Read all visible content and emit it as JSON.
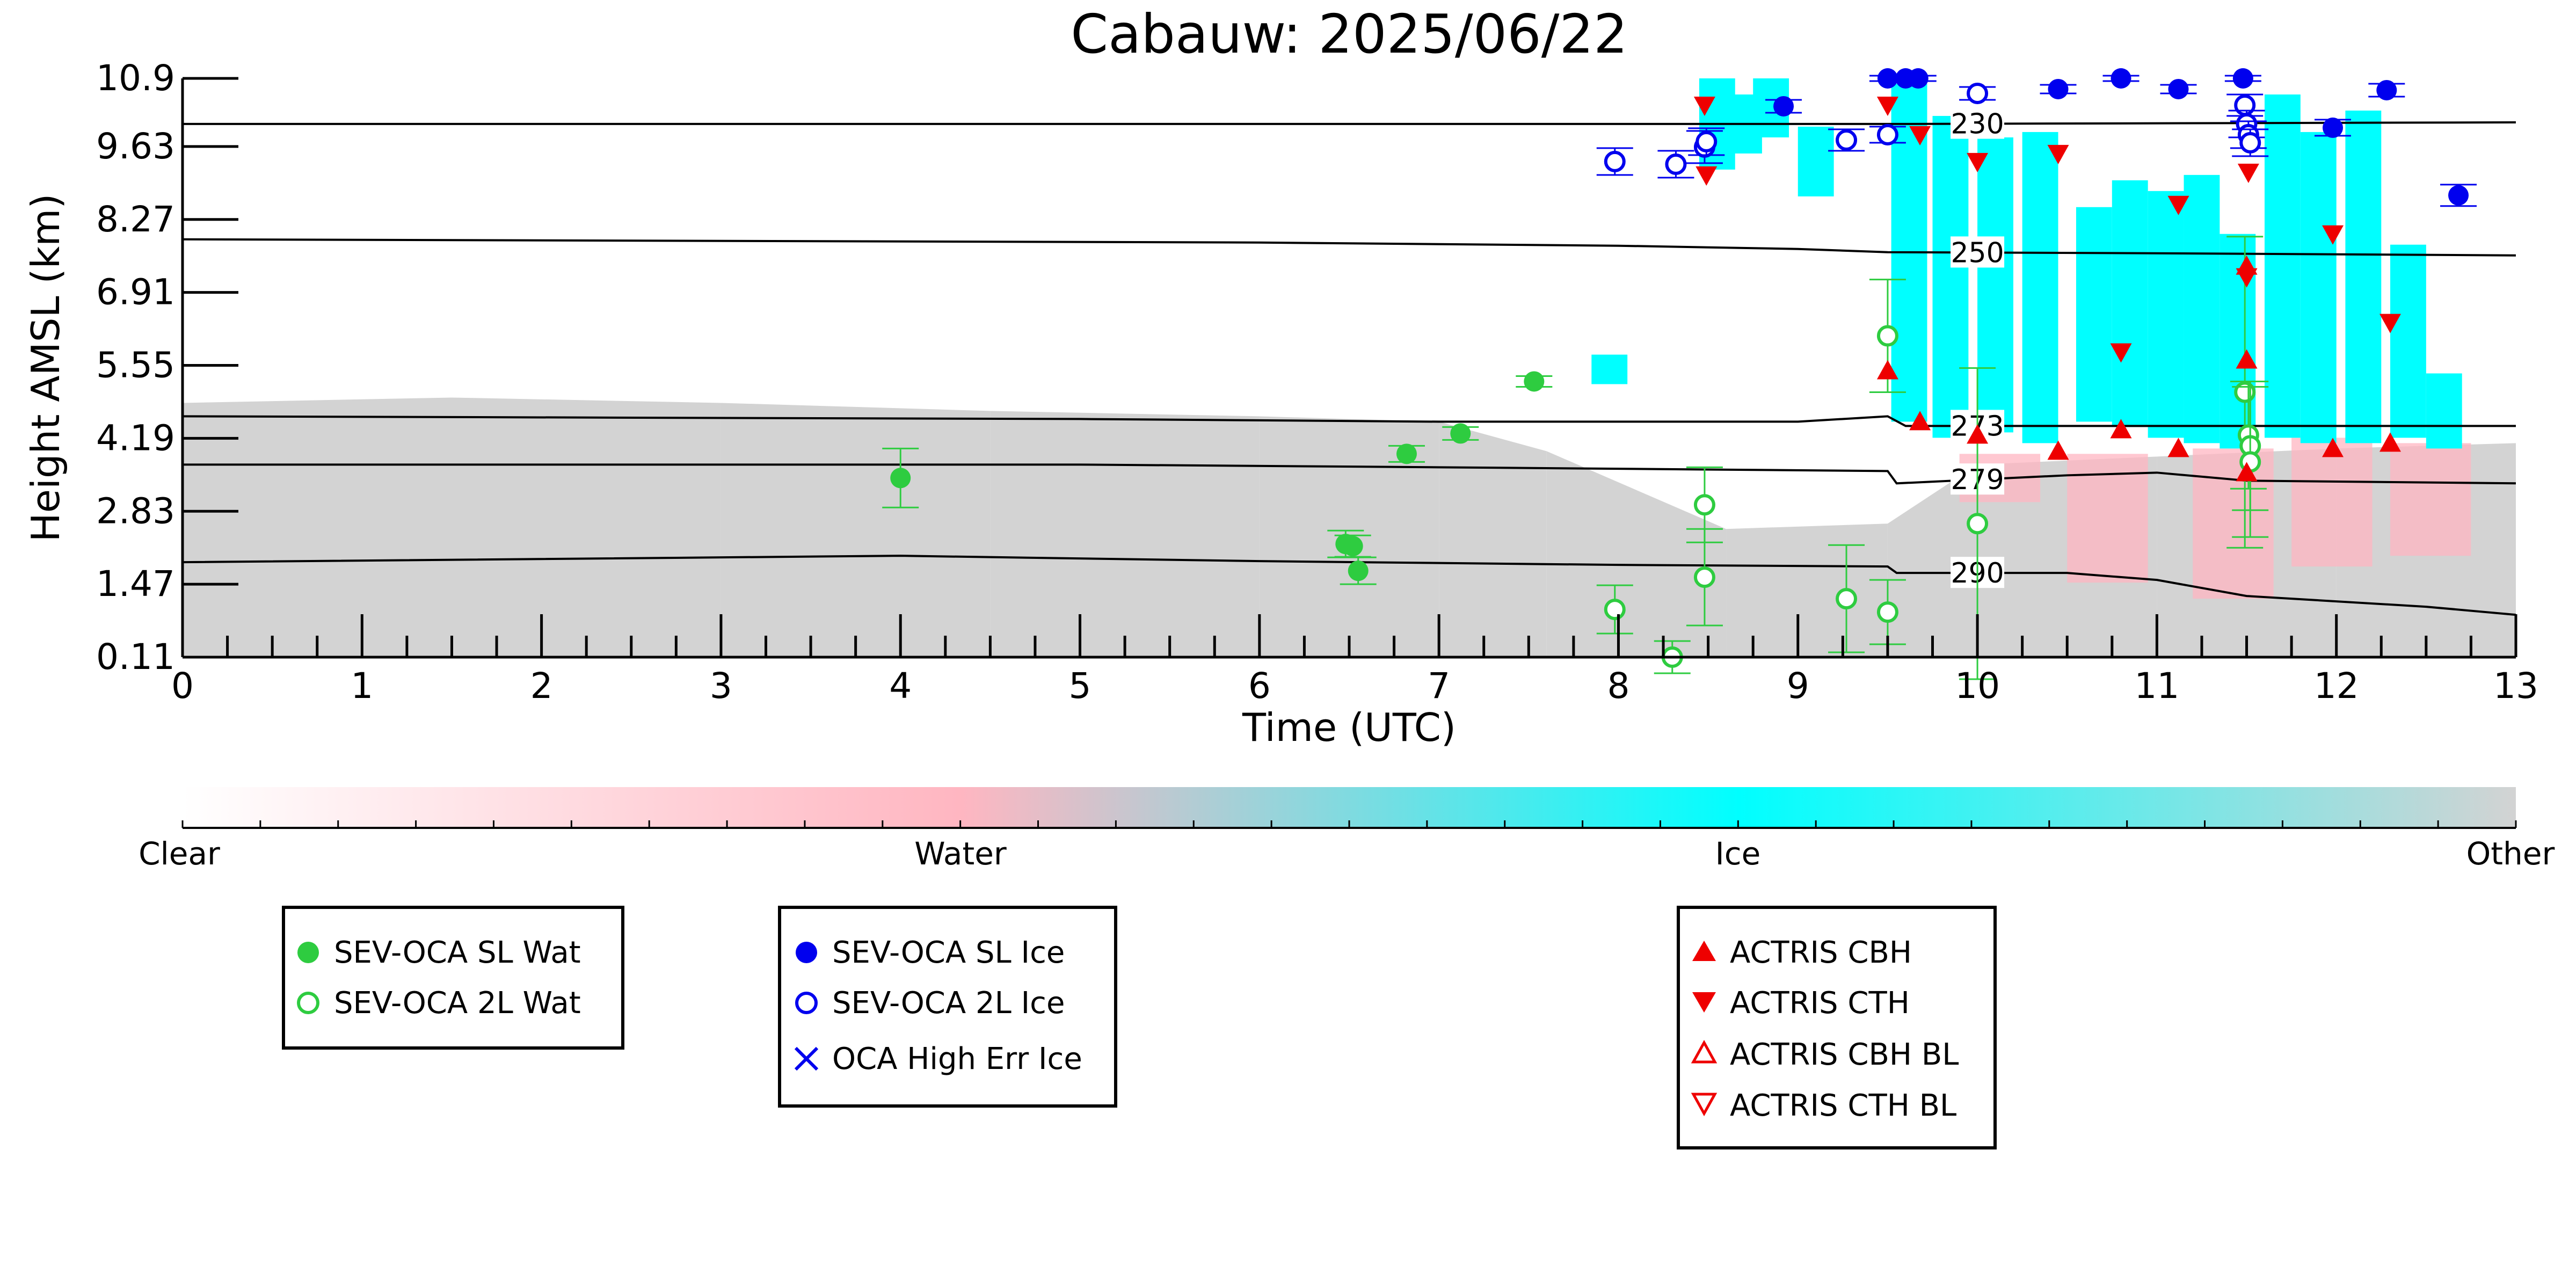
{
  "chart_data": {
    "type": "scatter",
    "title": "Cabauw: 2025/06/22",
    "xlabel": "Time (UTC)",
    "ylabel": "Height AMSL (km)",
    "xlim": [
      0,
      13
    ],
    "ylim": [
      0.11,
      10.9
    ],
    "xticks": [
      "0",
      "1",
      "2",
      "3",
      "4",
      "5",
      "6",
      "7",
      "8",
      "9",
      "10",
      "11",
      "12",
      "13"
    ],
    "yticks": [
      "0.11",
      "1.47",
      "2.83",
      "4.19",
      "5.55",
      "6.91",
      "8.27",
      "9.63",
      "10.9"
    ],
    "ytick_values": [
      0.11,
      1.47,
      2.83,
      4.19,
      5.55,
      6.91,
      8.27,
      9.63,
      10.9
    ],
    "colorbar": {
      "labels": [
        "Clear",
        "Water",
        "Ice",
        "Other"
      ],
      "colors": [
        "#ffffff",
        "#ffb6c1",
        "#00ffff",
        "#d3d3d3"
      ]
    },
    "colors": {
      "other": "#d3d3d3",
      "ice": "#00ffff",
      "water": "#ffb6c1",
      "sev_wat": "#2ecc40",
      "sev_ice": "#0000ee",
      "actris": "#ee0000",
      "isotherm": "#000000"
    },
    "isotherms": [
      {
        "label": "230",
        "label_x": 10.0,
        "points": [
          [
            0,
            10.05
          ],
          [
            9.5,
            10.05
          ],
          [
            13,
            10.08
          ]
        ]
      },
      {
        "label": "250",
        "label_x": 10.0,
        "points": [
          [
            0,
            7.9
          ],
          [
            6,
            7.84
          ],
          [
            8,
            7.78
          ],
          [
            9,
            7.72
          ],
          [
            9.5,
            7.66
          ],
          [
            11,
            7.64
          ],
          [
            13,
            7.6
          ]
        ]
      },
      {
        "label": "273",
        "label_x": 10.0,
        "points": [
          [
            0,
            4.6
          ],
          [
            5,
            4.55
          ],
          [
            7,
            4.5
          ],
          [
            9,
            4.5
          ],
          [
            9.5,
            4.6
          ],
          [
            9.6,
            4.42
          ],
          [
            10.5,
            4.42
          ],
          [
            13,
            4.42
          ]
        ]
      },
      {
        "label": "279",
        "label_x": 10.0,
        "points": [
          [
            0,
            3.7
          ],
          [
            5,
            3.7
          ],
          [
            7,
            3.65
          ],
          [
            9.5,
            3.58
          ],
          [
            9.55,
            3.35
          ],
          [
            10.5,
            3.5
          ],
          [
            11.0,
            3.55
          ],
          [
            11.5,
            3.4
          ],
          [
            13,
            3.35
          ]
        ]
      },
      {
        "label": "290",
        "label_x": 10.0,
        "points": [
          [
            0,
            1.88
          ],
          [
            4,
            2.0
          ],
          [
            6,
            1.9
          ],
          [
            8,
            1.83
          ],
          [
            9.5,
            1.8
          ],
          [
            9.55,
            1.68
          ],
          [
            10.5,
            1.68
          ],
          [
            11.0,
            1.55
          ],
          [
            11.5,
            1.25
          ],
          [
            12.5,
            1.05
          ],
          [
            13,
            0.9
          ]
        ]
      }
    ],
    "series": [
      {
        "name": "SEV-OCA SL Wat",
        "marker": "filled-circle",
        "color": "#2ecc40",
        "points": [
          [
            4.0,
            3.45,
            0.55
          ],
          [
            6.48,
            2.22,
            0.25
          ],
          [
            6.52,
            2.18,
            0.2
          ],
          [
            6.55,
            1.72,
            0.25
          ],
          [
            6.82,
            3.9,
            0.15
          ],
          [
            7.12,
            4.28,
            0.12
          ],
          [
            7.53,
            5.25,
            0.1
          ]
        ]
      },
      {
        "name": "SEV-OCA 2L Wat",
        "marker": "open-circle",
        "color": "#2ecc40",
        "points": [
          [
            7.98,
            1.0,
            0.45
          ],
          [
            8.3,
            0.11,
            0.3
          ],
          [
            8.48,
            2.95,
            0.7
          ],
          [
            8.48,
            1.6,
            0.9
          ],
          [
            9.27,
            1.2,
            1.0
          ],
          [
            9.5,
            0.95,
            0.6
          ],
          [
            9.5,
            6.1,
            1.05
          ],
          [
            10.0,
            2.6,
            2.9
          ],
          [
            11.49,
            5.05,
            2.9
          ],
          [
            11.51,
            4.25,
            1.0
          ],
          [
            11.52,
            4.05,
            1.2
          ],
          [
            11.52,
            3.75,
            1.4
          ]
        ]
      },
      {
        "name": "SEV-OCA SL Ice",
        "marker": "filled-circle",
        "color": "#0000ee",
        "points": [
          [
            8.92,
            10.38,
            0.12
          ],
          [
            9.5,
            10.9,
            0.05
          ],
          [
            9.6,
            10.9,
            0.05
          ],
          [
            9.67,
            10.9,
            0.05
          ],
          [
            10.45,
            10.7,
            0.08
          ],
          [
            10.8,
            10.9,
            0.05
          ],
          [
            11.12,
            10.7,
            0.08
          ],
          [
            11.48,
            10.9,
            0.05
          ],
          [
            11.98,
            9.98,
            0.15
          ],
          [
            12.28,
            10.68,
            0.12
          ],
          [
            12.68,
            8.72,
            0.2
          ]
        ]
      },
      {
        "name": "SEV-OCA 2L Ice",
        "marker": "open-circle",
        "color": "#0000ee",
        "points": [
          [
            7.98,
            9.35,
            0.25
          ],
          [
            8.32,
            9.3,
            0.25
          ],
          [
            8.48,
            9.62,
            0.3
          ],
          [
            8.49,
            9.72,
            0.25
          ],
          [
            9.27,
            9.75,
            0.2
          ],
          [
            9.5,
            9.85,
            0.15
          ],
          [
            10.0,
            10.62,
            0.12
          ],
          [
            11.49,
            10.4,
            0.2
          ],
          [
            11.5,
            10.05,
            0.25
          ],
          [
            11.51,
            9.85,
            0.25
          ],
          [
            11.52,
            9.7,
            0.25
          ]
        ]
      },
      {
        "name": "OCA High Err Ice",
        "marker": "x",
        "color": "#0000ee",
        "points": []
      },
      {
        "name": "ACTRIS CBH",
        "marker": "filled-triangle-up",
        "color": "#ee0000",
        "points": [
          [
            9.5,
            5.45
          ],
          [
            9.68,
            4.5
          ],
          [
            10.0,
            4.25
          ],
          [
            10.45,
            3.95
          ],
          [
            10.8,
            4.35
          ],
          [
            11.12,
            4.0
          ],
          [
            11.5,
            5.65
          ],
          [
            11.5,
            7.4
          ],
          [
            11.5,
            3.55
          ],
          [
            11.98,
            4.0
          ],
          [
            12.3,
            4.1
          ]
        ]
      },
      {
        "name": "ACTRIS CTH",
        "marker": "filled-triangle-down",
        "color": "#ee0000",
        "points": [
          [
            8.48,
            10.4
          ],
          [
            8.49,
            9.1
          ],
          [
            9.5,
            10.4
          ],
          [
            9.68,
            9.85
          ],
          [
            10.0,
            9.35
          ],
          [
            10.45,
            9.5
          ],
          [
            10.8,
            5.8
          ],
          [
            11.12,
            8.55
          ],
          [
            11.5,
            7.2
          ],
          [
            11.51,
            9.15
          ],
          [
            11.98,
            8.0
          ],
          [
            12.3,
            6.35
          ]
        ]
      },
      {
        "name": "ACTRIS CBH BL",
        "marker": "open-triangle-up",
        "color": "#ee0000",
        "points": []
      },
      {
        "name": "ACTRIS CTH BL",
        "marker": "open-triangle-down",
        "color": "#ee0000",
        "points": []
      }
    ],
    "legends": [
      {
        "items": [
          "SEV-OCA SL Wat",
          "SEV-OCA 2L Wat"
        ]
      },
      {
        "items": [
          "SEV-OCA SL Ice",
          "SEV-OCA 2L Ice",
          "OCA High Err Ice"
        ]
      },
      {
        "items": [
          "ACTRIS CBH",
          "ACTRIS CTH",
          "ACTRIS CBH BL",
          "ACTRIS CTH BL"
        ]
      }
    ]
  }
}
